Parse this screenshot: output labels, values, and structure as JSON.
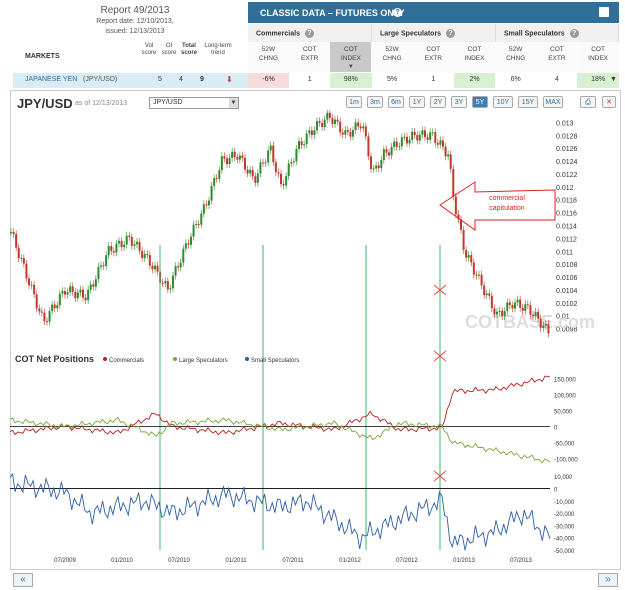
{
  "report": {
    "title": "Report 49/2013",
    "date_line": "Report date: 12/10/2013,",
    "issued_line": "issued: 12/13/2013"
  },
  "classic": {
    "title": "CLASSIC DATA – FUTURES ONLY",
    "help": "?"
  },
  "groups": [
    "Commercials",
    "Large Speculators",
    "Small Speculators"
  ],
  "markets_label": "MARKETS",
  "score_headers": [
    [
      "Vol",
      "score"
    ],
    [
      "OI",
      "score"
    ],
    [
      "Total",
      "score"
    ],
    [
      "Long-term",
      "trend"
    ]
  ],
  "col_headers": [
    [
      "52W",
      "CHNG"
    ],
    [
      "COT",
      "EXTR"
    ],
    [
      "COT",
      "INDEX"
    ],
    [
      "52W",
      "CHNG"
    ],
    [
      "COT",
      "EXTR"
    ],
    [
      "COT",
      "INDEX"
    ],
    [
      "52W",
      "CHNG"
    ],
    [
      "COT",
      "EXTR"
    ],
    [
      "COT",
      "INDEX"
    ]
  ],
  "row": {
    "market": "JAPANESE YEN",
    "symbol": "(JPY/USD)",
    "vol": "5",
    "oi": "4",
    "total": "9",
    "values": [
      "-6%",
      "1",
      "98%",
      "5%",
      "1",
      "2%",
      "6%",
      "4",
      "18%"
    ]
  },
  "chart": {
    "ticker": "JPY/USD",
    "asof": "as of 12/13/2013",
    "select": "JPY/USD",
    "zoom": [
      "1m",
      "3m",
      "6m",
      "1Y",
      "2Y",
      "3Y",
      "5Y",
      "10Y",
      "15Y",
      "MAX"
    ],
    "zoom_active": "5Y",
    "price_ticks": [
      "0.013",
      "0.0128",
      "0.0126",
      "0.0124",
      "0.0122",
      "0.012",
      "0.0118",
      "0.0116",
      "0.0114",
      "0.0112",
      "0.011",
      "0.0108",
      "0.0106",
      "0.0104",
      "0.0102",
      "0.01",
      "0.0098"
    ],
    "annotation": [
      "commercial",
      "capitulation"
    ],
    "watermark": "COTBASE.com",
    "cot_title": "COT Net Positions",
    "legend": [
      "Commercials",
      "Large Speculators",
      "Small Speculators"
    ],
    "cot_ticks": [
      "150,000",
      "100,000",
      "50,000",
      "0",
      "-50,000",
      "-100,000"
    ],
    "small_ticks": [
      "10,000",
      "0",
      "-10,000",
      "-20,000",
      "-30,000",
      "-40,000",
      "-50,000"
    ],
    "x_labels": [
      "07/2009",
      "01/2010",
      "07/2010",
      "01/2011",
      "07/2011",
      "01/2012",
      "07/2012",
      "01/2013",
      "07/2013"
    ],
    "colors": {
      "commercials": "#b22222",
      "large": "#7aa63a",
      "small": "#2c5fa8",
      "up": "#2e8b2e",
      "down": "#c0392b"
    }
  },
  "nav": {
    "prev": "«",
    "next": "»"
  },
  "chart_data": {
    "type": "line",
    "title": "JPY/USD",
    "x": [
      "07/2009",
      "01/2010",
      "07/2010",
      "01/2011",
      "07/2011",
      "01/2012",
      "07/2012",
      "01/2013",
      "07/2013",
      "12/2013"
    ],
    "series": [
      {
        "name": "JPY/USD",
        "values": [
          0.0105,
          0.0108,
          0.0112,
          0.0121,
          0.0126,
          0.013,
          0.0127,
          0.0116,
          0.0102,
          0.0097
        ]
      },
      {
        "name": "Commercials",
        "values": [
          -20000,
          30000,
          -5000,
          -30000,
          10000,
          60000,
          20000,
          120000,
          110000,
          150000
        ]
      },
      {
        "name": "Large Speculators",
        "values": [
          20000,
          -20000,
          10000,
          20000,
          -10000,
          -40000,
          -20000,
          -60000,
          -90000,
          -110000
        ]
      },
      {
        "name": "Small Speculators",
        "values": [
          -5000,
          -10000,
          -20000,
          -15000,
          -25000,
          -45000,
          -30000,
          -48000,
          -35000,
          -40000
        ]
      }
    ]
  }
}
